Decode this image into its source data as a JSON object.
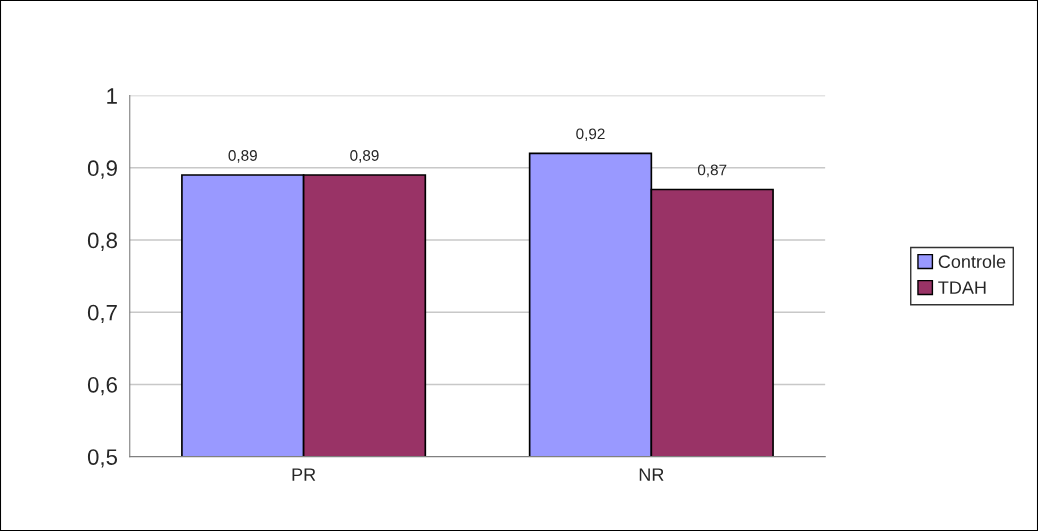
{
  "chart_data": {
    "type": "bar",
    "categories": [
      "PR",
      "NR"
    ],
    "series": [
      {
        "name": "Controle",
        "color": "#9999ff",
        "values": [
          0.89,
          0.92
        ],
        "value_labels": [
          "0,89",
          "0,92"
        ]
      },
      {
        "name": "TDAH",
        "color": "#993366",
        "values": [
          0.89,
          0.87
        ],
        "value_labels": [
          "0,89",
          "0,87"
        ]
      }
    ],
    "ylim": [
      0.5,
      1
    ],
    "yticks": [
      {
        "value": 0.5,
        "label": "0,5"
      },
      {
        "value": 0.6,
        "label": "0,6"
      },
      {
        "value": 0.7,
        "label": "0,7"
      },
      {
        "value": 0.8,
        "label": "0,8"
      },
      {
        "value": 0.9,
        "label": "0,9"
      },
      {
        "value": 1,
        "label": "1"
      }
    ],
    "grid": "y",
    "legend": "right"
  }
}
